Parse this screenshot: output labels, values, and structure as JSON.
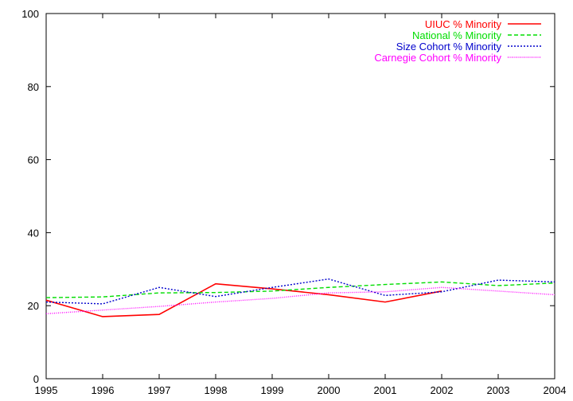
{
  "chart_data": {
    "type": "line",
    "x": [
      1995,
      1996,
      1997,
      1998,
      1999,
      2000,
      2001,
      2002,
      2003,
      2004
    ],
    "xlim": [
      1995,
      2004
    ],
    "ylim": [
      0,
      100
    ],
    "xticks": [
      "1995",
      "1996",
      "1997",
      "1998",
      "1999",
      "2000",
      "2001",
      "2002",
      "2003",
      "2004"
    ],
    "yticks": [
      "0",
      "20",
      "40",
      "60",
      "80",
      "100"
    ],
    "grid": false,
    "legend_position": "top-right",
    "series": [
      {
        "name": "UIUC % Minority",
        "color": "#ff0000",
        "dash": "solid",
        "values": [
          21.5,
          17.0,
          17.6,
          26.0,
          24.6,
          23.0,
          21.0,
          24.0,
          null,
          null
        ]
      },
      {
        "name": "National % Minority",
        "color": "#00dd00",
        "dash": "dashed",
        "values": [
          22.2,
          22.4,
          23.5,
          23.6,
          24.0,
          25.0,
          25.8,
          26.5,
          25.5,
          26.2
        ]
      },
      {
        "name": "Size Cohort % Minority",
        "color": "#0000cc",
        "dash": "dotted",
        "values": [
          21.0,
          20.5,
          25.0,
          22.5,
          25.0,
          27.3,
          22.8,
          23.8,
          27.0,
          26.5
        ]
      },
      {
        "name": "Carnegie Cohort % Minority",
        "color": "#ff00ff",
        "dash": "finedot",
        "values": [
          17.8,
          18.8,
          19.8,
          21.0,
          22.0,
          23.5,
          23.8,
          25.0,
          24.0,
          23.0
        ]
      }
    ]
  }
}
